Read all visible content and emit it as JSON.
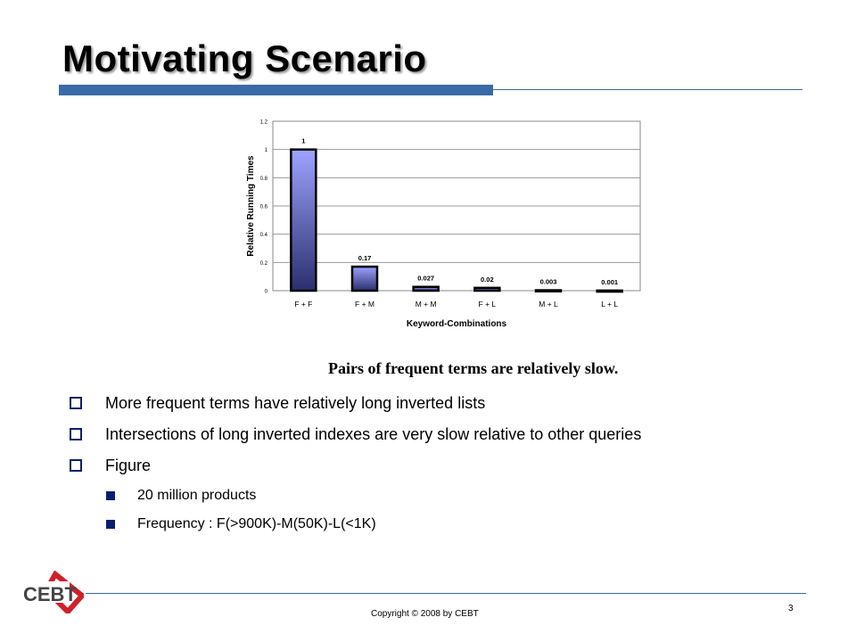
{
  "slide": {
    "title": "Motivating Scenario",
    "caption": "Pairs of frequent terms are relatively slow.",
    "bullets": [
      "More frequent terms have relatively long inverted lists",
      "Intersections of long inverted indexes are very slow relative to other queries",
      "Figure"
    ],
    "sub_bullets": [
      "20 million products",
      "Frequency : F(>900K)-M(50K)-L(<1K)"
    ],
    "footer": {
      "copyright": "Copyright © 2008 by CEBT",
      "page_number": "3",
      "logo_text": "CEBT"
    }
  },
  "colors": {
    "accent": "#3a6aa6",
    "bullet": "#0a1e6e",
    "bar_top": "#9da3ff",
    "bar_bottom": "#2b2f6e",
    "logo_red": "#d0202a"
  },
  "chart_data": {
    "type": "bar",
    "categories": [
      "F + F",
      "F + M",
      "M + M",
      "F + L",
      "M + L",
      "L + L"
    ],
    "values": [
      1,
      0.17,
      0.027,
      0.02,
      0.003,
      0.001
    ],
    "data_labels": [
      "1",
      "0.17",
      "0.027",
      "0.02",
      "0.003",
      "0.001"
    ],
    "title": "",
    "xlabel": "Keyword-Combinations",
    "ylabel": "Relative Running Times",
    "ylim": [
      0,
      1.2
    ],
    "yticks": [
      0,
      0.2,
      0.4,
      0.6,
      0.8,
      1,
      1.2
    ],
    "ytick_labels": [
      "0",
      "0.2",
      "0.4",
      "0.6",
      "0.8",
      "1",
      "1.2"
    ],
    "grid": true,
    "legend": false
  }
}
